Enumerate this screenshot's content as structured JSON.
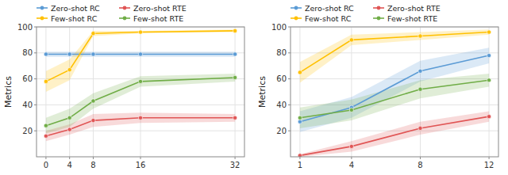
{
  "chart_data": [
    {
      "type": "line",
      "ylabel": "Metrics",
      "x": [
        0,
        4,
        8,
        16,
        32
      ],
      "xlim": [
        -1.6,
        33.6
      ],
      "xticks": [
        0,
        4,
        8,
        16,
        32
      ],
      "ylim": [
        0,
        100
      ],
      "yticks": [
        20,
        40,
        60,
        80,
        100
      ],
      "grid": true,
      "legend": "upper left",
      "marker": "o",
      "series": [
        {
          "name": "Zero-shot RC",
          "color": "#5b9bd5",
          "values": [
            79,
            79,
            79,
            79,
            79
          ],
          "std": [
            2,
            2,
            2,
            2,
            2
          ]
        },
        {
          "name": "Zero-shot RTE",
          "color": "#e05555",
          "values": [
            16,
            21,
            28,
            30,
            30
          ],
          "std": [
            4,
            4,
            5,
            4,
            3
          ]
        },
        {
          "name": "Few-shot RC",
          "color": "#ffc000",
          "values": [
            58,
            67,
            95,
            96,
            97
          ],
          "std": [
            8,
            8,
            2,
            1,
            1
          ]
        },
        {
          "name": "Few-shot RTE",
          "color": "#70ad47",
          "values": [
            24,
            30,
            43,
            58,
            61
          ],
          "std": [
            6,
            7,
            6,
            4,
            3
          ]
        }
      ]
    },
    {
      "type": "line",
      "ylabel": "Metrics",
      "x": [
        1,
        4,
        8,
        12
      ],
      "xlim": [
        0.45,
        12.55
      ],
      "xticks": [
        1,
        4,
        8,
        12
      ],
      "ylim": [
        0,
        100
      ],
      "yticks": [
        20,
        40,
        60,
        80,
        100
      ],
      "grid": true,
      "legend": "upper left",
      "marker": "o",
      "series": [
        {
          "name": "Zero-shot RC",
          "color": "#5b9bd5",
          "values": [
            27,
            38,
            66,
            78
          ],
          "std": [
            8,
            8,
            8,
            6
          ]
        },
        {
          "name": "Zero-shot RTE",
          "color": "#e05555",
          "values": [
            1,
            8,
            22,
            31
          ],
          "std": [
            1,
            4,
            5,
            4
          ]
        },
        {
          "name": "Few-shot RC",
          "color": "#ffc000",
          "values": [
            65,
            90,
            93,
            96
          ],
          "std": [
            8,
            4,
            3,
            2
          ]
        },
        {
          "name": "Few-shot RTE",
          "color": "#70ad47",
          "values": [
            30,
            36,
            52,
            59
          ],
          "std": [
            8,
            8,
            7,
            5
          ]
        }
      ]
    }
  ]
}
